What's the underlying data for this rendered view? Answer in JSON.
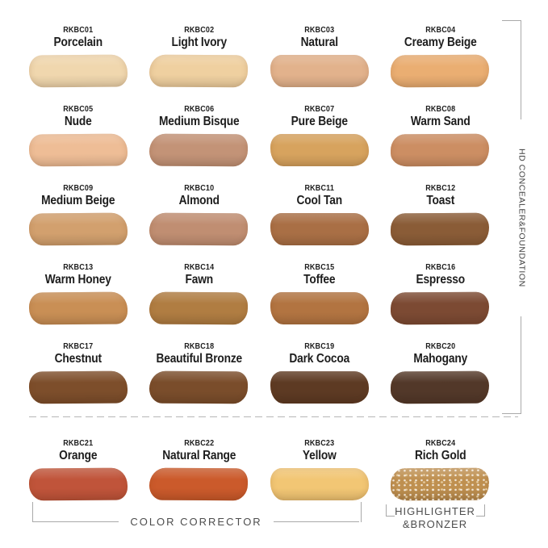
{
  "sections": {
    "right_label": "HD CONCEALER&FOUNDATION",
    "corrector_label": "COLOR CORRECTOR",
    "highlighter_label_line1": "HIGHLIGHTER",
    "highlighter_label_line2": "&BRONZER"
  },
  "colors": {
    "bracket_gray": "#a9a9a9",
    "label_ink": "#1d1d1d",
    "section_text_gray": "#4d4d4d",
    "background": "#ffffff"
  },
  "swatches": [
    {
      "code": "RKBC01",
      "name": "Porcelain",
      "color": "#f0d7ae"
    },
    {
      "code": "RKBC02",
      "name": "Light Ivory",
      "color": "#efd0a0"
    },
    {
      "code": "RKBC03",
      "name": "Natural",
      "color": "#e2b28c"
    },
    {
      "code": "RKBC04",
      "name": "Creamy Beige",
      "color": "#eaae72"
    },
    {
      "code": "RKBC05",
      "name": "Nude",
      "color": "#eebd96"
    },
    {
      "code": "RKBC06",
      "name": "Medium Bisque",
      "color": "#c39377"
    },
    {
      "code": "RKBC07",
      "name": "Pure Beige",
      "color": "#d7a35e"
    },
    {
      "code": "RKBC08",
      "name": "Warm Sand",
      "color": "#cc8e63"
    },
    {
      "code": "RKBC09",
      "name": "Medium Beige",
      "color": "#d2a06e"
    },
    {
      "code": "RKBC10",
      "name": "Almond",
      "color": "#c08e72"
    },
    {
      "code": "RKBC11",
      "name": "Cool Tan",
      "color": "#a96f45"
    },
    {
      "code": "RKBC12",
      "name": "Toast",
      "color": "#8a5c37"
    },
    {
      "code": "RKBC13",
      "name": "Warm Honey",
      "color": "#c98f55"
    },
    {
      "code": "RKBC14",
      "name": "Fawn",
      "color": "#b07d42"
    },
    {
      "code": "RKBC15",
      "name": "Toffee",
      "color": "#b27441"
    },
    {
      "code": "RKBC16",
      "name": "Espresso",
      "color": "#7c4a33"
    },
    {
      "code": "RKBC17",
      "name": "Chestnut",
      "color": "#7d4e2b"
    },
    {
      "code": "RKBC18",
      "name": "Beautiful Bronze",
      "color": "#7a4d2b"
    },
    {
      "code": "RKBC19",
      "name": "Dark Cocoa",
      "color": "#5d3a23"
    },
    {
      "code": "RKBC20",
      "name": "Mahogany",
      "color": "#523829"
    },
    {
      "code": "RKBC21",
      "name": "Orange",
      "color": "#c0543a"
    },
    {
      "code": "RKBC22",
      "name": "Natural Range",
      "color": "#cb5a2b"
    },
    {
      "code": "RKBC23",
      "name": "Yellow",
      "color": "#f2c674"
    },
    {
      "code": "RKBC24",
      "name": "Rich Gold",
      "color": "#bf9050",
      "finish": "shimmer"
    }
  ]
}
